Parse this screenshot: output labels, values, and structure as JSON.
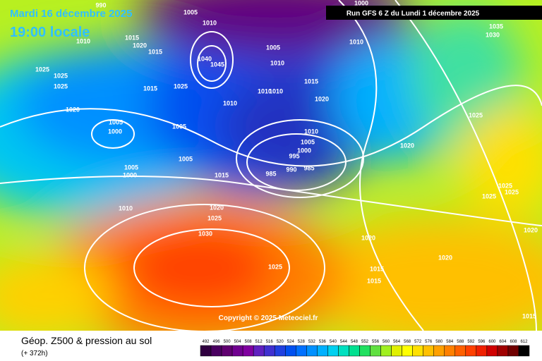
{
  "header": {
    "date": "Mardi 16 décembre 2025",
    "time": "19:00 locale",
    "run": "Run GFS 6 Z du Lundi 1 décembre 2025"
  },
  "copyright": "Copyright © 2025 Meteociel.fr",
  "footer": {
    "title": "Géop. Z500 & pression au sol",
    "lead": "(+ 372h)"
  },
  "scale": {
    "values": [
      492,
      496,
      500,
      504,
      508,
      512,
      516,
      520,
      524,
      528,
      532,
      536,
      540,
      544,
      548,
      552,
      556,
      560,
      564,
      568,
      572,
      576,
      580,
      584,
      588,
      592,
      596,
      600,
      604,
      608,
      612
    ],
    "colors": [
      "#300040",
      "#4a0060",
      "#600070",
      "#700090",
      "#8000a0",
      "#6020c0",
      "#4030d0",
      "#2040e0",
      "#0050f0",
      "#0070ff",
      "#0090ff",
      "#00b0ff",
      "#00d0f0",
      "#00e0c0",
      "#00e090",
      "#20e060",
      "#60e040",
      "#a0f020",
      "#e0f000",
      "#ffff00",
      "#ffe000",
      "#ffc000",
      "#ffa000",
      "#ff8000",
      "#ff6000",
      "#ff4000",
      "#f02000",
      "#d00000",
      "#a00000",
      "#700000",
      "#000000"
    ]
  },
  "isobar_labels": [
    "990",
    "1005",
    "1010",
    "1000",
    "1035",
    "1030",
    "1015",
    "1020",
    "1010",
    "1015",
    "1005",
    "1010",
    "1025",
    "1025",
    "1025",
    "1015",
    "1025",
    "1010",
    "1010",
    "1010",
    "1015",
    "1020",
    "1010",
    "1020",
    "1005",
    "1000",
    "1005",
    "1025",
    "1010",
    "1005",
    "1000",
    "995",
    "1020",
    "1005",
    "985",
    "990",
    "985",
    "1005",
    "1000",
    "1015",
    "1025",
    "1025",
    "1025",
    "1010",
    "1020",
    "1025",
    "1030",
    "1020",
    "1020",
    "1020",
    "1025",
    "1015",
    "1015",
    "1015",
    "1040",
    "1045"
  ]
}
